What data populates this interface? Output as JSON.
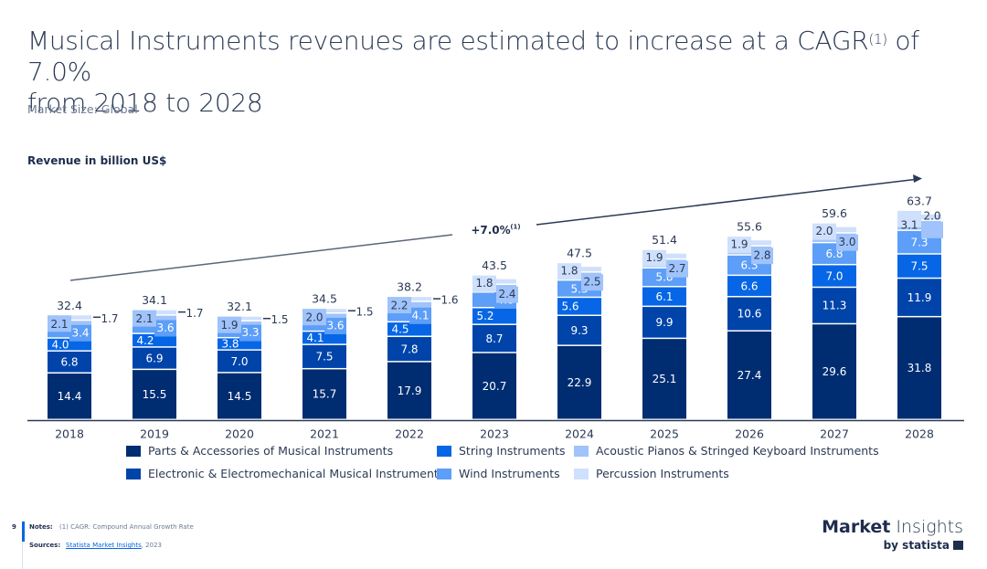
{
  "header": {
    "title_line1_pre": "Musical Instruments revenues are estimated to increase at a CAGR",
    "title_sup": "(1)",
    "title_line1_post": " of 7.0%",
    "title_line2": "from 2018 to 2028",
    "subtitle": "Market Size: Global"
  },
  "chart_data": {
    "type": "bar",
    "stacked": true,
    "title": "Musical Instruments revenues are estimated to increase at a CAGR(1) of 7.0% from 2018 to 2028",
    "ylabel": "Revenue in billion US$",
    "xlabel": "",
    "ylim": [
      0,
      66
    ],
    "grid": false,
    "legend_position": "bottom",
    "categories": [
      "2018",
      "2019",
      "2020",
      "2021",
      "2022",
      "2023",
      "2024",
      "2025",
      "2026",
      "2027",
      "2028"
    ],
    "totals": [
      32.4,
      34.1,
      32.1,
      34.5,
      38.2,
      43.5,
      47.5,
      51.4,
      55.6,
      59.6,
      63.7
    ],
    "series": [
      {
        "name": "Parts & Accessories of Musical Instruments",
        "color": "#002d72",
        "values": [
          14.4,
          15.5,
          14.5,
          15.7,
          17.9,
          20.7,
          22.9,
          25.1,
          27.4,
          29.6,
          31.8
        ]
      },
      {
        "name": "Electronic & Electromechanical Musical Instruments",
        "color": "#0044aa",
        "values": [
          6.8,
          6.9,
          7.0,
          7.5,
          7.8,
          8.7,
          9.3,
          9.9,
          10.6,
          11.3,
          11.9
        ]
      },
      {
        "name": "String Instruments",
        "color": "#0666e5",
        "values": [
          4.0,
          4.2,
          3.8,
          4.1,
          4.5,
          5.2,
          5.6,
          6.1,
          6.6,
          7.0,
          7.5
        ]
      },
      {
        "name": "Wind Instruments",
        "color": "#5c9ef8",
        "values": [
          3.4,
          3.6,
          3.3,
          3.6,
          4.1,
          4.8,
          5.3,
          5.8,
          6.3,
          6.8,
          7.3
        ]
      },
      {
        "name": "Acoustic Pianos & Stringed Keyboard Instruments",
        "color": "#9fc3fa",
        "values": [
          2.1,
          2.1,
          1.9,
          2.0,
          2.2,
          2.4,
          2.5,
          2.7,
          2.8,
          3.0,
          3.1
        ]
      },
      {
        "name": "Percussion Instruments",
        "color": "#cfe0fc",
        "values": [
          1.7,
          1.7,
          1.5,
          1.5,
          1.6,
          1.8,
          1.8,
          1.9,
          1.9,
          2.0,
          2.0
        ]
      }
    ],
    "annotation": {
      "label": "+7.0%",
      "sup": "(1)",
      "from": "2018",
      "to": "2028"
    }
  },
  "legend": {
    "items": [
      {
        "label": "Parts & Accessories of Musical Instruments",
        "color": "#002d72"
      },
      {
        "label": "Electronic & Electromechanical Musical Instruments",
        "color": "#0044aa"
      },
      {
        "label": "String Instruments",
        "color": "#0666e5"
      },
      {
        "label": "Wind Instruments",
        "color": "#5c9ef8"
      },
      {
        "label": "Acoustic Pianos & Stringed Keyboard Instruments",
        "color": "#9fc3fa"
      },
      {
        "label": "Percussion Instruments",
        "color": "#cfe0fc"
      }
    ]
  },
  "footer": {
    "page_number": "9",
    "notes_label": "Notes:",
    "notes_text": "(1) CAGR: Compound Annual Growth Rate",
    "sources_label": "Sources:",
    "sources_link": "Statista Market Insights",
    "sources_year": ", 2023",
    "brand_bold": "Market",
    "brand_light": " Insights",
    "brand_by": "by statista"
  }
}
